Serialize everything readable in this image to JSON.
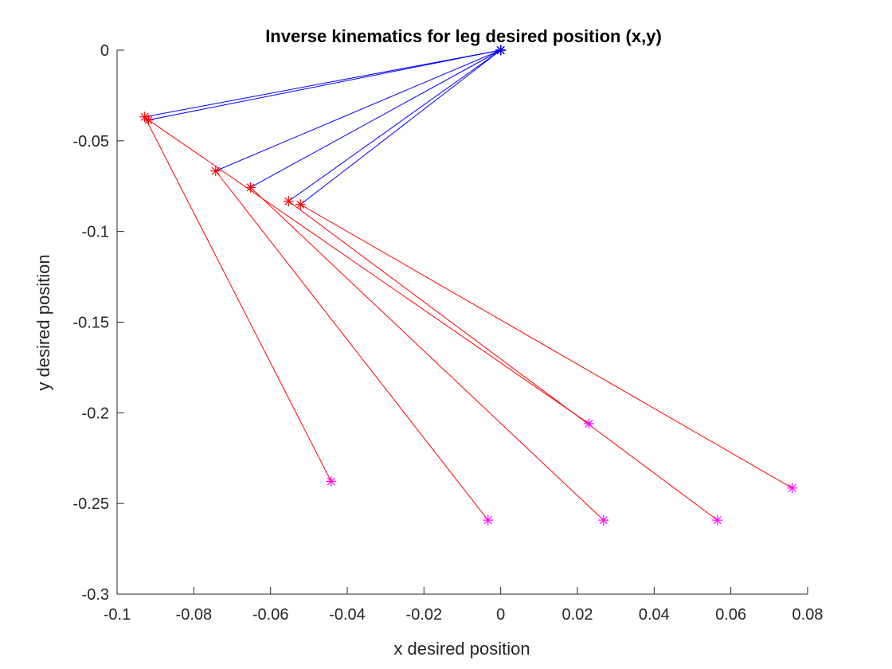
{
  "chart_data": {
    "type": "line",
    "title": "Inverse kinematics for leg desired position (x,y)",
    "xlabel": "x desired position",
    "ylabel": "y desired position",
    "xlim": [
      -0.1,
      0.08
    ],
    "ylim": [
      -0.3,
      0
    ],
    "xticks": [
      "-0.1",
      "-0.08",
      "-0.06",
      "-0.04",
      "-0.02",
      "0",
      "0.02",
      "0.04",
      "0.06",
      "0.08"
    ],
    "yticks": [
      "0",
      "-0.05",
      "-0.1",
      "-0.15",
      "-0.2",
      "-0.25",
      "-0.3"
    ],
    "grid": false,
    "legend": "none",
    "colors": {
      "upper_leg": "#0000ff",
      "lower_leg": "#ff0000",
      "hip_marker": "#0000ff",
      "knee_marker": "#ff0000",
      "foot_marker": "#ff00ff"
    },
    "series": [
      {
        "hip": [
          0,
          0
        ],
        "knee": [
          -0.0928,
          -0.0368
        ],
        "foot": [
          -0.0442,
          -0.2378
        ]
      },
      {
        "hip": [
          0,
          0
        ],
        "knee": [
          -0.0743,
          -0.0666
        ],
        "foot": [
          -0.0033,
          -0.2592
        ]
      },
      {
        "hip": [
          0,
          0
        ],
        "knee": [
          -0.0652,
          -0.0757
        ],
        "foot": [
          0.0268,
          -0.2592
        ]
      },
      {
        "hip": [
          0,
          0
        ],
        "knee": [
          -0.0553,
          -0.0833
        ],
        "foot": [
          0.0565,
          -0.2592
        ]
      },
      {
        "hip": [
          0,
          0
        ],
        "knee": [
          -0.0522,
          -0.0851
        ],
        "foot": [
          0.076,
          -0.2415
        ]
      },
      {
        "hip": [
          0,
          0
        ],
        "knee": [
          -0.0918,
          -0.0385
        ],
        "foot": [
          0.023,
          -0.206
        ]
      }
    ]
  }
}
